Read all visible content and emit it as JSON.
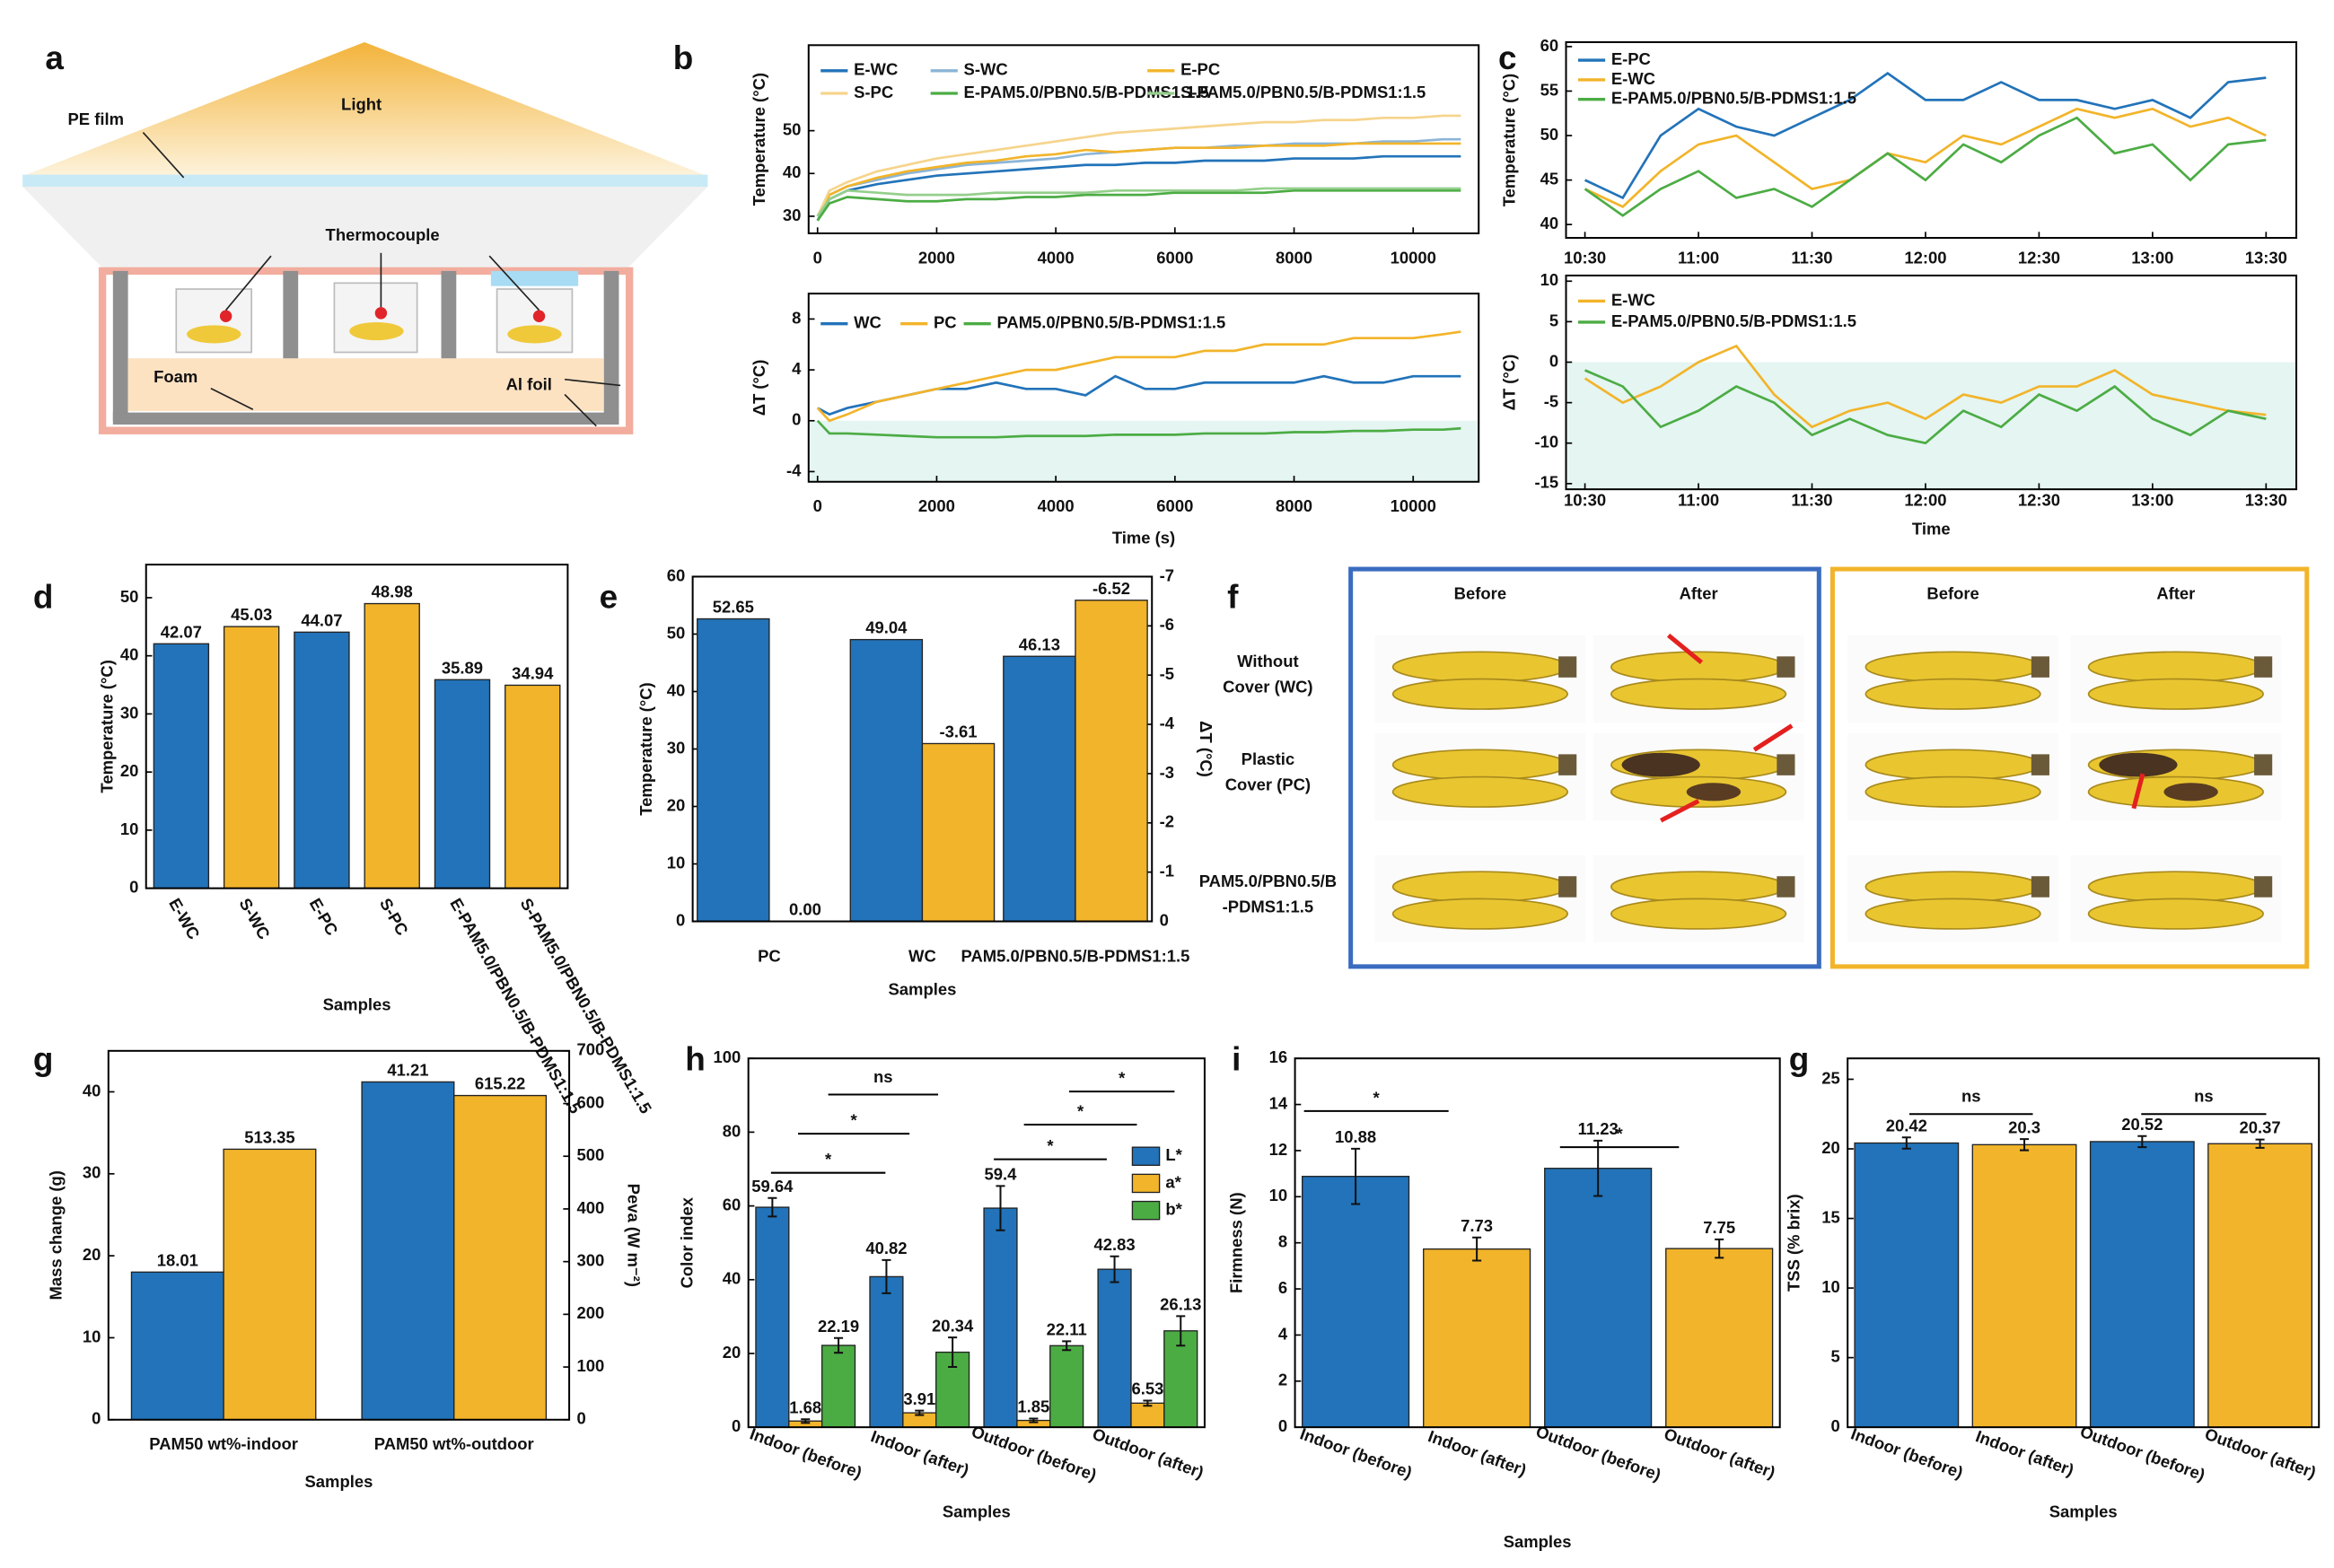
{
  "diagram": {
    "panel": "a",
    "labels": [
      "Light",
      "PE film",
      "Thermocouple",
      "Foam",
      "Al foil"
    ]
  },
  "photos": {
    "panel": "f",
    "columns": [
      "Before",
      "After",
      "Before",
      "After"
    ],
    "rows": [
      [
        "Without",
        "Cover (WC)"
      ],
      [
        "Plastic",
        "Cover (PC)"
      ],
      [
        "PAM5.0/PBN0.5/B",
        "-PDMS1:1.5"
      ]
    ]
  },
  "chart_data": [
    {
      "type": "line",
      "panel": "b",
      "ylabel": "Temperature (°C)",
      "x": [
        0,
        200,
        500,
        1000,
        1500,
        2000,
        2500,
        3000,
        3500,
        4000,
        4500,
        5000,
        5500,
        6000,
        6500,
        7000,
        7500,
        8000,
        8500,
        9000,
        9500,
        10000,
        10500,
        10800
      ],
      "xlim": [
        -150,
        11100
      ],
      "xticks": [
        0,
        2000,
        4000,
        6000,
        8000,
        10000
      ],
      "ylim": [
        26,
        70
      ],
      "yticks": [
        30,
        40,
        50
      ],
      "series": [
        {
          "name": "E-WC",
          "color": "#2273b9",
          "values": [
            29,
            34,
            36,
            37.5,
            38.5,
            39.5,
            40,
            40.5,
            41,
            41.5,
            42,
            42,
            42.5,
            42.5,
            43,
            43,
            43,
            43.5,
            43.5,
            43.5,
            44,
            44,
            44,
            44
          ]
        },
        {
          "name": "S-WC",
          "color": "#8cb5d6",
          "values": [
            30,
            35,
            37,
            38.5,
            40,
            41,
            42,
            42.5,
            43,
            43.5,
            44.5,
            45,
            45.5,
            46,
            46,
            46.5,
            46.5,
            47,
            47,
            47,
            47.5,
            47.5,
            48,
            48
          ]
        },
        {
          "name": "E-PC",
          "color": "#f2b42a",
          "values": [
            30,
            35,
            37,
            39,
            40.5,
            41.5,
            42.5,
            43,
            44,
            44.5,
            45.5,
            45,
            45.5,
            46,
            46,
            46,
            46.5,
            46.5,
            46.5,
            47,
            47,
            47,
            47,
            47
          ]
        },
        {
          "name": "S-PC",
          "color": "#f6d48c",
          "values": [
            30,
            36,
            38,
            40.5,
            42,
            43.5,
            44.5,
            45.5,
            46.5,
            47.5,
            48.5,
            49.5,
            50,
            50.5,
            51,
            51.5,
            52,
            52,
            52.5,
            52.5,
            53,
            53,
            53.5,
            53.5
          ]
        },
        {
          "name": "E-PAM5.0/PBN0.5/B-PDMS1:1.5",
          "color": "#4cac44",
          "values": [
            29,
            33,
            34.5,
            34,
            33.5,
            33.5,
            34,
            34,
            34.5,
            34.5,
            35,
            35,
            35,
            35.5,
            35.5,
            35.5,
            35.5,
            36,
            36,
            36,
            36,
            36,
            36,
            36
          ]
        },
        {
          "name": "S-PAM5.0/PBN0.5/B-PDMS1:1.5",
          "color": "#95cf8c",
          "values": [
            30,
            34,
            36,
            35.5,
            35,
            35,
            35,
            35.5,
            35.5,
            35.5,
            35.5,
            36,
            36,
            36,
            36,
            36,
            36.5,
            36.5,
            36.5,
            36.5,
            36.5,
            36.5,
            36.5,
            36.5
          ]
        }
      ]
    },
    {
      "type": "line",
      "ylabel": "ΔT (°C)",
      "xlabel": "Time (s)",
      "shade_negative": true,
      "x": [
        0,
        200,
        500,
        1000,
        1500,
        2000,
        2500,
        3000,
        3500,
        4000,
        4500,
        5000,
        5500,
        6000,
        6500,
        7000,
        7500,
        8000,
        8500,
        9000,
        9500,
        10000,
        10500,
        10800
      ],
      "xlim": [
        -150,
        11100
      ],
      "xticks": [
        0,
        2000,
        4000,
        6000,
        8000,
        10000
      ],
      "ylim": [
        -4.8,
        10
      ],
      "yticks": [
        -4,
        0,
        4,
        8
      ],
      "series": [
        {
          "name": "WC",
          "color": "#2273b9",
          "values": [
            1,
            0.5,
            1,
            1.5,
            2,
            2.5,
            2.5,
            3,
            2.5,
            2.5,
            2,
            3.5,
            2.5,
            2.5,
            3,
            3,
            3,
            3,
            3.5,
            3,
            3,
            3.5,
            3.5,
            3.5
          ]
        },
        {
          "name": "PC",
          "color": "#f2b42a",
          "values": [
            1,
            0,
            0.5,
            1.5,
            2,
            2.5,
            3,
            3.5,
            4,
            4,
            4.5,
            5,
            5,
            5,
            5.5,
            5.5,
            6,
            6,
            6,
            6.5,
            6.5,
            6.5,
            6.8,
            7
          ]
        },
        {
          "name": "PAM5.0/PBN0.5/B-PDMS1:1.5",
          "color": "#4cac44",
          "values": [
            0,
            -1,
            -1,
            -1.1,
            -1.2,
            -1.3,
            -1.3,
            -1.3,
            -1.2,
            -1.2,
            -1.2,
            -1.1,
            -1.1,
            -1.1,
            -1,
            -1,
            -1,
            -0.9,
            -0.9,
            -0.8,
            -0.8,
            -0.7,
            -0.7,
            -0.6
          ]
        }
      ]
    },
    {
      "type": "line",
      "panel": "c",
      "ylabel": "Temperature (°C)",
      "x": [
        "10:30",
        "10:40",
        "10:50",
        "11:00",
        "11:10",
        "11:20",
        "11:30",
        "11:40",
        "11:50",
        "12:00",
        "12:10",
        "12:20",
        "12:30",
        "12:40",
        "12:50",
        "13:00",
        "13:10",
        "13:20",
        "13:30"
      ],
      "xlim": [
        "10:25",
        "13:38"
      ],
      "xticks": [
        "10:30",
        "11:00",
        "11:30",
        "12:00",
        "12:30",
        "13:00",
        "13:30"
      ],
      "ylim": [
        38.5,
        60.5
      ],
      "yticks": [
        40,
        45,
        50,
        55,
        60
      ],
      "series": [
        {
          "name": "E-PC",
          "color": "#2273b9",
          "values": [
            45,
            43,
            50,
            53,
            51,
            50,
            52,
            54,
            57,
            54,
            54,
            56,
            54,
            54,
            53,
            54,
            52,
            56,
            56.5
          ]
        },
        {
          "name": "E-WC",
          "color": "#f2b42a",
          "values": [
            44,
            42,
            46,
            49,
            50,
            47,
            44,
            45,
            48,
            47,
            50,
            49,
            51,
            53,
            52,
            53,
            51,
            52,
            50
          ]
        },
        {
          "name": "E-PAM5.0/PBN0.5/B-PDMS1:1.5",
          "color": "#4cac44",
          "values": [
            44,
            41,
            44,
            46,
            43,
            44,
            42,
            45,
            48,
            45,
            49,
            47,
            50,
            52,
            48,
            49,
            45,
            49,
            49.5
          ]
        }
      ]
    },
    {
      "type": "line",
      "ylabel": "ΔT (°C)",
      "xlabel": "Time",
      "shade_negative": true,
      "x": [
        "10:30",
        "10:40",
        "10:50",
        "11:00",
        "11:10",
        "11:20",
        "11:30",
        "11:40",
        "11:50",
        "12:00",
        "12:10",
        "12:20",
        "12:30",
        "12:40",
        "12:50",
        "13:00",
        "13:10",
        "13:20",
        "13:30"
      ],
      "xlim": [
        "10:25",
        "13:38"
      ],
      "xticks": [
        "10:30",
        "11:00",
        "11:30",
        "12:00",
        "12:30",
        "13:00",
        "13:30"
      ],
      "ylim": [
        -15.7,
        10.7
      ],
      "yticks": [
        -15,
        -10,
        -5,
        0,
        5,
        10
      ],
      "series": [
        {
          "name": "E-WC",
          "color": "#f2b42a",
          "values": [
            -2,
            -5,
            -3,
            0,
            2,
            -4,
            -8,
            -6,
            -5,
            -7,
            -4,
            -5,
            -3,
            -3,
            -1,
            -4,
            -5,
            -6,
            -6.5
          ]
        },
        {
          "name": "E-PAM5.0/PBN0.5/B-PDMS1:1.5",
          "color": "#4cac44",
          "values": [
            -1,
            -3,
            -8,
            -6,
            -3,
            -5,
            -9,
            -7,
            -9,
            -10,
            -6,
            -8,
            -4,
            -6,
            -3,
            -7,
            -9,
            -6,
            -7
          ]
        }
      ]
    },
    {
      "type": "bar",
      "panel": "d",
      "ylabel": "Temperature (°C)",
      "xlabel": "Samples",
      "categories": [
        "E-WC",
        "S-WC",
        "E-PC",
        "S-PC",
        "E-PAM5.0/PBN0.5/B-PDMS1:1.5",
        "S-PAM5.0/PBN0.5/B-PDMS1:1.5"
      ],
      "values": [
        42.07,
        45.03,
        44.07,
        48.98,
        35.89,
        34.94
      ],
      "colors": [
        "#2273b9",
        "#f2b42a",
        "#2273b9",
        "#f2b42a",
        "#2273b9",
        "#f2b42a"
      ],
      "ylim": [
        0,
        55.7
      ],
      "yticks": [
        0,
        10,
        20,
        30,
        40,
        50
      ]
    },
    {
      "type": "bar",
      "panel": "e",
      "ylabel": "Temperature (°C)",
      "y2label": "ΔT (°C)",
      "xlabel": "Samples",
      "categories": [
        "PC",
        "WC",
        "PAM5.0/PBN0.5/B-PDMS1:1.5"
      ],
      "ylim": [
        0,
        60
      ],
      "yticks": [
        0,
        10,
        20,
        30,
        40,
        50,
        60
      ],
      "y2lim": [
        0,
        -7
      ],
      "y2ticks": [
        0,
        -1,
        -2,
        -3,
        -4,
        -5,
        -6,
        -7
      ],
      "series": [
        {
          "color": "#2273b9",
          "values": [
            52.65,
            49.04,
            46.13
          ]
        },
        {
          "color": "#f2b42a",
          "axis": "y2",
          "values": [
            0,
            -3.61,
            -6.52
          ],
          "value_labels": [
            "0.00",
            "-3.61",
            "-6.52"
          ]
        }
      ]
    },
    {
      "type": "bar",
      "panel": "g",
      "ylabel": "Mass change (g)",
      "y2label": "Peva (W m⁻²)",
      "xlabel": "Samples",
      "categories": [
        "PAM50 wt%-indoor",
        "PAM50 wt%-outdoor"
      ],
      "ylim": [
        0,
        45
      ],
      "yticks": [
        0,
        10,
        20,
        30,
        40
      ],
      "y2lim": [
        0,
        700
      ],
      "y2ticks": [
        0,
        100,
        200,
        300,
        400,
        500,
        600,
        700
      ],
      "series": [
        {
          "color": "#2273b9",
          "values": [
            18.01,
            41.21
          ]
        },
        {
          "color": "#f2b42a",
          "axis": "y2",
          "values": [
            513.35,
            615.22
          ]
        }
      ]
    },
    {
      "type": "bar",
      "panel": "h",
      "ylabel": "Color index",
      "xlabel": "Samples",
      "categories": [
        "Indoor (before)",
        "Indoor (after)",
        "Outdoor (before)",
        "Outdoor (after)"
      ],
      "ylim": [
        0,
        100
      ],
      "yticks": [
        0,
        20,
        40,
        60,
        80,
        100
      ],
      "annotations": [
        "ns",
        "*",
        "*",
        "*",
        "*",
        "*"
      ],
      "series": [
        {
          "name": "L*",
          "color": "#2273b9",
          "values": [
            59.64,
            40.82,
            59.4,
            42.83
          ],
          "errors": [
            2.5,
            4.5,
            6,
            3.5
          ]
        },
        {
          "name": "a*",
          "color": "#f2b42a",
          "values": [
            1.68,
            3.91,
            1.85,
            6.53
          ],
          "errors": [
            0.5,
            0.6,
            0.5,
            0.7
          ]
        },
        {
          "name": "b*",
          "color": "#4cac44",
          "values": [
            22.19,
            20.34,
            22.11,
            26.13
          ],
          "errors": [
            2,
            4,
            1.2,
            4
          ]
        }
      ]
    },
    {
      "type": "bar",
      "panel": "i",
      "ylabel": "Firmness (N)",
      "xlabel": "Samples",
      "categories": [
        "Indoor (before)",
        "Indoor (after)",
        "Outdoor (before)",
        "Outdoor (after)"
      ],
      "values": [
        10.88,
        7.73,
        11.23,
        7.75
      ],
      "errors": [
        1.2,
        0.5,
        1.2,
        0.4
      ],
      "colors": [
        "#2273b9",
        "#f2b42a",
        "#2273b9",
        "#f2b42a"
      ],
      "ylim": [
        0,
        16
      ],
      "yticks": [
        0,
        2,
        4,
        6,
        8,
        10,
        12,
        14,
        16
      ],
      "annotations": [
        "*",
        "*"
      ]
    },
    {
      "type": "bar",
      "panel": "g",
      "ylabel": "TSS (% brix)",
      "xlabel": "Samples",
      "categories": [
        "Indoor (before)",
        "Indoor (after)",
        "Outdoor (before)",
        "Outdoor (after)"
      ],
      "values": [
        20.42,
        20.3,
        20.52,
        20.37
      ],
      "errors": [
        0.4,
        0.4,
        0.4,
        0.3
      ],
      "colors": [
        "#2273b9",
        "#f2b42a",
        "#2273b9",
        "#f2b42a"
      ],
      "ylim": [
        0,
        26.5
      ],
      "yticks": [
        0,
        5,
        10,
        15,
        20,
        25
      ],
      "annotations": [
        "ns",
        "ns"
      ]
    }
  ]
}
